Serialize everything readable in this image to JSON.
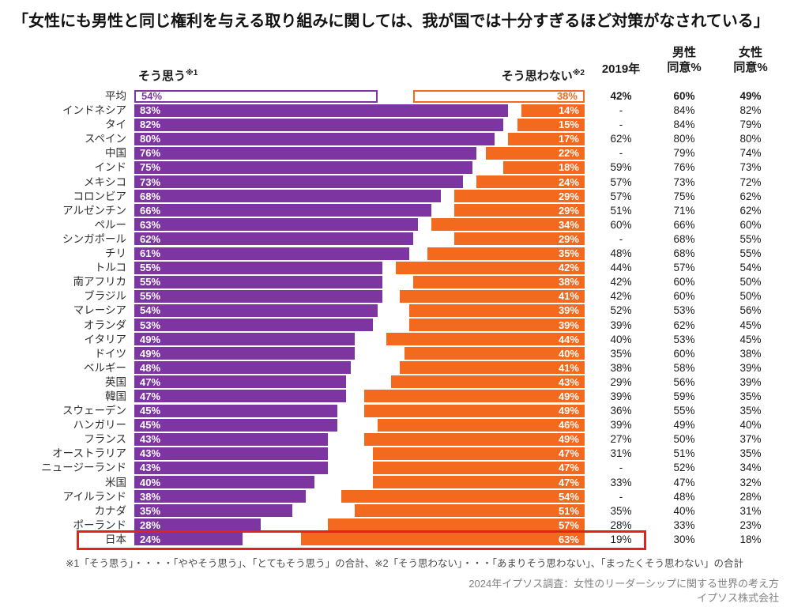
{
  "title": "「女性にも男性と同じ権利を与える取り組みに関しては、我が国では十分すぎるほど対策がなされている」",
  "legend": {
    "agree_label": "そう思う",
    "agree_sup": "※1",
    "disagree_label": "そう思わない",
    "disagree_sup": "※2"
  },
  "columns": {
    "y2019": "2019年",
    "male_line1": "男性",
    "male_line2": "同意%",
    "female_line1": "女性",
    "female_line2": "同意%"
  },
  "colors": {
    "agree": "#7d35a1",
    "disagree": "#f3691e",
    "highlight": "#e2231a"
  },
  "chart_data": {
    "type": "bar",
    "orientation": "horizontal-diverging",
    "unit": "%",
    "series": [
      {
        "name": "そう思う※1",
        "color": "#7d35a1"
      },
      {
        "name": "そう思わない※2",
        "color": "#f3691e"
      }
    ],
    "xlim_each_side": [
      0,
      100
    ],
    "grid": false,
    "rows": [
      {
        "label": "平均",
        "agree": 54,
        "disagree": 38,
        "y2019": "42%",
        "male": "60%",
        "female": "49%",
        "outlined": true,
        "highlighted": false
      },
      {
        "label": "インドネシア",
        "agree": 83,
        "disagree": 14,
        "y2019": "-",
        "male": "84%",
        "female": "82%",
        "outlined": false,
        "highlighted": false
      },
      {
        "label": "タイ",
        "agree": 82,
        "disagree": 15,
        "y2019": "-",
        "male": "84%",
        "female": "79%",
        "outlined": false,
        "highlighted": false
      },
      {
        "label": "スペイン",
        "agree": 80,
        "disagree": 17,
        "y2019": "62%",
        "male": "80%",
        "female": "80%",
        "outlined": false,
        "highlighted": false
      },
      {
        "label": "中国",
        "agree": 76,
        "disagree": 22,
        "y2019": "-",
        "male": "79%",
        "female": "74%",
        "outlined": false,
        "highlighted": false
      },
      {
        "label": "インド",
        "agree": 75,
        "disagree": 18,
        "y2019": "59%",
        "male": "76%",
        "female": "73%",
        "outlined": false,
        "highlighted": false
      },
      {
        "label": "メキシコ",
        "agree": 73,
        "disagree": 24,
        "y2019": "57%",
        "male": "73%",
        "female": "72%",
        "outlined": false,
        "highlighted": false
      },
      {
        "label": "コロンビア",
        "agree": 68,
        "disagree": 29,
        "y2019": "57%",
        "male": "75%",
        "female": "62%",
        "outlined": false,
        "highlighted": false
      },
      {
        "label": "アルゼンチン",
        "agree": 66,
        "disagree": 29,
        "y2019": "51%",
        "male": "71%",
        "female": "62%",
        "outlined": false,
        "highlighted": false
      },
      {
        "label": "ペルー",
        "agree": 63,
        "disagree": 34,
        "y2019": "60%",
        "male": "66%",
        "female": "60%",
        "outlined": false,
        "highlighted": false
      },
      {
        "label": "シンガポール",
        "agree": 62,
        "disagree": 29,
        "y2019": "-",
        "male": "68%",
        "female": "55%",
        "outlined": false,
        "highlighted": false
      },
      {
        "label": "チリ",
        "agree": 61,
        "disagree": 35,
        "y2019": "48%",
        "male": "68%",
        "female": "55%",
        "outlined": false,
        "highlighted": false
      },
      {
        "label": "トルコ",
        "agree": 55,
        "disagree": 42,
        "y2019": "44%",
        "male": "57%",
        "female": "54%",
        "outlined": false,
        "highlighted": false
      },
      {
        "label": "南アフリカ",
        "agree": 55,
        "disagree": 38,
        "y2019": "42%",
        "male": "60%",
        "female": "50%",
        "outlined": false,
        "highlighted": false
      },
      {
        "label": "ブラジル",
        "agree": 55,
        "disagree": 41,
        "y2019": "42%",
        "male": "60%",
        "female": "50%",
        "outlined": false,
        "highlighted": false
      },
      {
        "label": "マレーシア",
        "agree": 54,
        "disagree": 39,
        "y2019": "52%",
        "male": "53%",
        "female": "56%",
        "outlined": false,
        "highlighted": false
      },
      {
        "label": "オランダ",
        "agree": 53,
        "disagree": 39,
        "y2019": "39%",
        "male": "62%",
        "female": "45%",
        "outlined": false,
        "highlighted": false
      },
      {
        "label": "イタリア",
        "agree": 49,
        "disagree": 44,
        "y2019": "40%",
        "male": "53%",
        "female": "45%",
        "outlined": false,
        "highlighted": false
      },
      {
        "label": "ドイツ",
        "agree": 49,
        "disagree": 40,
        "y2019": "35%",
        "male": "60%",
        "female": "38%",
        "outlined": false,
        "highlighted": false
      },
      {
        "label": "ベルギー",
        "agree": 48,
        "disagree": 41,
        "y2019": "38%",
        "male": "58%",
        "female": "39%",
        "outlined": false,
        "highlighted": false
      },
      {
        "label": "英国",
        "agree": 47,
        "disagree": 43,
        "y2019": "29%",
        "male": "56%",
        "female": "39%",
        "outlined": false,
        "highlighted": false
      },
      {
        "label": "韓国",
        "agree": 47,
        "disagree": 49,
        "y2019": "39%",
        "male": "59%",
        "female": "35%",
        "outlined": false,
        "highlighted": false
      },
      {
        "label": "スウェーデン",
        "agree": 45,
        "disagree": 49,
        "y2019": "36%",
        "male": "55%",
        "female": "35%",
        "outlined": false,
        "highlighted": false
      },
      {
        "label": "ハンガリー",
        "agree": 45,
        "disagree": 46,
        "y2019": "39%",
        "male": "49%",
        "female": "40%",
        "outlined": false,
        "highlighted": false
      },
      {
        "label": "フランス",
        "agree": 43,
        "disagree": 49,
        "y2019": "27%",
        "male": "50%",
        "female": "37%",
        "outlined": false,
        "highlighted": false
      },
      {
        "label": "オーストラリア",
        "agree": 43,
        "disagree": 47,
        "y2019": "31%",
        "male": "51%",
        "female": "35%",
        "outlined": false,
        "highlighted": false
      },
      {
        "label": "ニュージーランド",
        "agree": 43,
        "disagree": 47,
        "y2019": "-",
        "male": "52%",
        "female": "34%",
        "outlined": false,
        "highlighted": false
      },
      {
        "label": "米国",
        "agree": 40,
        "disagree": 47,
        "y2019": "33%",
        "male": "47%",
        "female": "32%",
        "outlined": false,
        "highlighted": false
      },
      {
        "label": "アイルランド",
        "agree": 38,
        "disagree": 54,
        "y2019": "-",
        "male": "48%",
        "female": "28%",
        "outlined": false,
        "highlighted": false
      },
      {
        "label": "カナダ",
        "agree": 35,
        "disagree": 51,
        "y2019": "35%",
        "male": "40%",
        "female": "31%",
        "outlined": false,
        "highlighted": false
      },
      {
        "label": "ポーランド",
        "agree": 28,
        "disagree": 57,
        "y2019": "28%",
        "male": "33%",
        "female": "23%",
        "outlined": false,
        "highlighted": false
      },
      {
        "label": "日本",
        "agree": 24,
        "disagree": 63,
        "y2019": "19%",
        "male": "30%",
        "female": "18%",
        "outlined": false,
        "highlighted": true
      }
    ]
  },
  "footnote": "※1「そう思う」・・・・「ややそう思う」、「とてもそう思う」の合計、※2「そう思わない」・・・「あまりそう思わない」、「まったくそう思わない」の合計",
  "source": {
    "line1": "2024年イプソス調査：女性のリーダーシップに関する世界の考え方",
    "line2": "イプソス株式会社"
  }
}
